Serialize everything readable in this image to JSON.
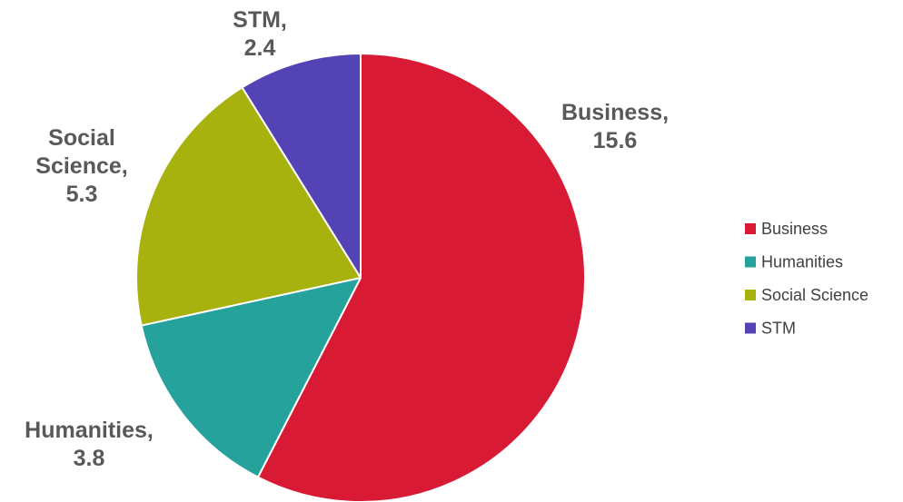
{
  "chart_data": {
    "type": "pie",
    "categories": [
      "Business",
      "Humanities",
      "Social Science",
      "STM"
    ],
    "values": [
      15.6,
      3.8,
      5.3,
      2.4
    ],
    "colors": [
      "#d91a35",
      "#26a29c",
      "#a8b20f",
      "#5343b4"
    ],
    "data_labels": [
      [
        "Business,",
        "15.6"
      ],
      [
        "Humanities,",
        "3.8"
      ],
      [
        "Social",
        "Science,",
        "5.3"
      ],
      [
        "STM,",
        "2.4"
      ]
    ],
    "legend": {
      "placement": "right",
      "entries": [
        "Business",
        "Humanities",
        "Social Science",
        "STM"
      ]
    },
    "start_angle_deg": 0,
    "direction": "clockwise"
  }
}
